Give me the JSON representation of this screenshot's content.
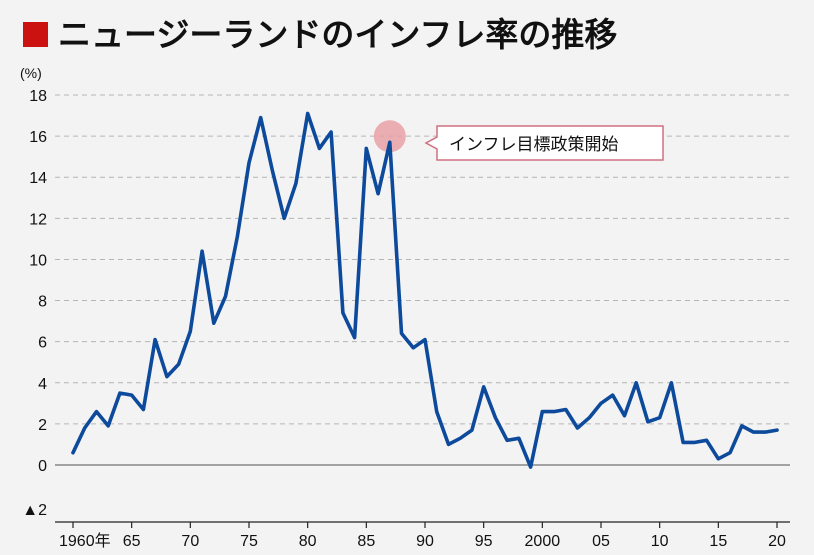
{
  "chart_data": {
    "type": "line",
    "title": "ニュージーランドのインフレ率の推移",
    "ylabel": "(%)",
    "xlabel": "",
    "ylim": [
      -2,
      18
    ],
    "xlim": [
      1960,
      2020
    ],
    "y_ticks": [
      0,
      2,
      4,
      6,
      8,
      10,
      12,
      14,
      16,
      18
    ],
    "y_tick_labels": [
      "0",
      "2",
      "4",
      "6",
      "8",
      "10",
      "12",
      "14",
      "16",
      "18"
    ],
    "y_min_label": "▲2",
    "x_ticks": [
      1960,
      1965,
      1970,
      1975,
      1980,
      1985,
      1990,
      1995,
      2000,
      2005,
      2010,
      2015,
      2020
    ],
    "x_tick_labels": [
      "1960年",
      "65",
      "70",
      "75",
      "80",
      "85",
      "90",
      "95",
      "2000",
      "05",
      "10",
      "15",
      "20"
    ],
    "grid": true,
    "colors": {
      "line": "#0d4a9c",
      "title_marker": "#cc1111",
      "highlight": "#e8a0a6"
    },
    "series": [
      {
        "x": [
          1960,
          1961,
          1962,
          1963,
          1964,
          1965,
          1966,
          1967,
          1968,
          1969,
          1970,
          1971,
          1972,
          1973,
          1974,
          1975,
          1976,
          1977,
          1978,
          1979,
          1980,
          1981,
          1982,
          1983,
          1984,
          1985,
          1986,
          1987,
          1988,
          1989,
          1990,
          1991,
          1992,
          1993,
          1994,
          1995,
          1996,
          1997,
          1998,
          1999,
          2000,
          2001,
          2002,
          2003,
          2004,
          2005,
          2006,
          2007,
          2008,
          2009,
          2010,
          2011,
          2012,
          2013,
          2014,
          2015,
          2016,
          2017,
          2018,
          2019,
          2020
        ],
        "values": [
          0.6,
          1.8,
          2.6,
          1.9,
          3.5,
          3.4,
          2.7,
          6.1,
          4.3,
          4.9,
          6.5,
          10.4,
          6.9,
          8.2,
          11.1,
          14.7,
          16.9,
          14.3,
          12.0,
          13.7,
          17.1,
          15.4,
          16.2,
          7.4,
          6.2,
          15.4,
          13.2,
          15.7,
          6.4,
          5.7,
          6.1,
          2.6,
          1.0,
          1.3,
          1.7,
          3.8,
          2.3,
          1.2,
          1.3,
          -0.1,
          2.6,
          2.6,
          2.7,
          1.8,
          2.3,
          3.0,
          3.4,
          2.4,
          4.0,
          2.1,
          2.3,
          4.0,
          1.1,
          1.1,
          1.2,
          0.3,
          0.6,
          1.9,
          1.6,
          1.6,
          1.7
        ]
      }
    ],
    "annotation": {
      "text": "インフレ目標政策開始",
      "x": 1987,
      "y": 15.7
    }
  }
}
